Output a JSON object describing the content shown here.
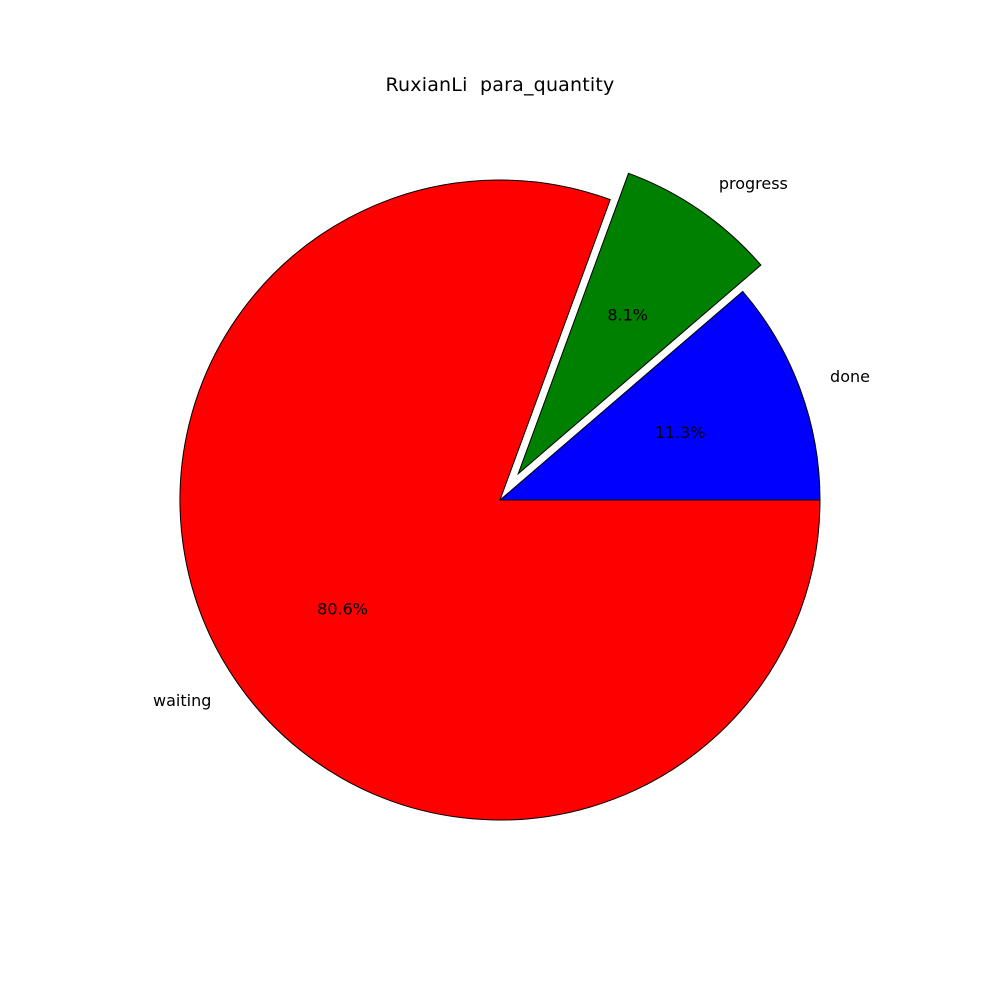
{
  "chart_data": {
    "type": "pie",
    "title": "RuxianLi  para_quantity",
    "slices": [
      {
        "label": "done",
        "value": 11.3,
        "pct_label": "11.3%",
        "color": "#0000ff",
        "exploded": false
      },
      {
        "label": "progress",
        "value": 8.1,
        "pct_label": "8.1%",
        "color": "#008000",
        "exploded": true
      },
      {
        "label": "waiting",
        "value": 80.6,
        "pct_label": "80.6%",
        "color": "#ff0000",
        "exploded": false
      }
    ],
    "start_angle_deg": 0,
    "direction": "counterclockwise",
    "edge_color": "#000000",
    "legend": false
  }
}
